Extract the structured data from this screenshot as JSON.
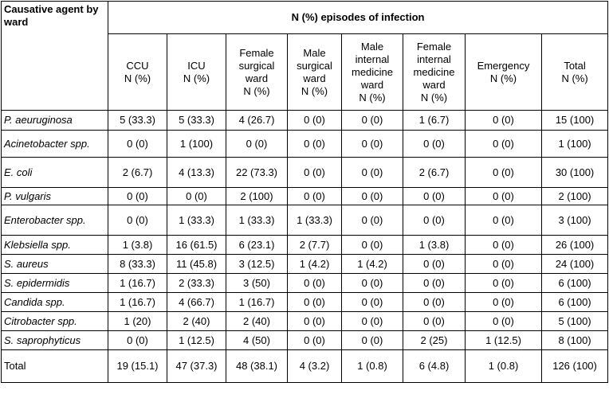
{
  "table": {
    "corner_header": "Causative agent by ward",
    "group_header": "N (%) episodes of infection",
    "columns": [
      "CCU\nN (%)",
      "ICU\nN (%)",
      "Female surgical ward\nN (%)",
      "Male surgical ward\nN (%)",
      "Male internal medicine ward\nN (%)",
      "Female internal medicine ward\nN (%)",
      "Emergency\nN (%)",
      "Total\nN (%)"
    ],
    "rows": [
      {
        "agent": "P. aeuruginosa",
        "italic": true,
        "values": [
          "5 (33.3)",
          "5 (33.3)",
          "4 (26.7)",
          "0 (0)",
          "0 (0)",
          "1 (6.7)",
          "0 (0)",
          "15 (100)"
        ]
      },
      {
        "agent": "Acinetobacter spp.",
        "italic": true,
        "values": [
          "0 (0)",
          "1 (100)",
          "0 (0)",
          "0 (0)",
          "0 (0)",
          "0 (0)",
          "0 (0)",
          "1 (100)"
        ]
      },
      {
        "agent": "E. coli",
        "italic": true,
        "values": [
          "2 (6.7)",
          "4 (13.3)",
          "22 (73.3)",
          "0 (0)",
          "0 (0)",
          "2 (6.7)",
          "0 (0)",
          "30 (100)"
        ]
      },
      {
        "agent": "P. vulgaris",
        "italic": true,
        "values": [
          "0 (0)",
          "0 (0)",
          "2 (100)",
          "0 (0)",
          "0 (0)",
          "0 (0)",
          "0 (0)",
          "2 (100)"
        ]
      },
      {
        "agent": "Enterobacter spp.",
        "italic": true,
        "values": [
          "0 (0)",
          "1 (33.3)",
          "1 (33.3)",
          "1 (33.3)",
          "0 (0)",
          "0 (0)",
          "0 (0)",
          "3 (100)"
        ]
      },
      {
        "agent": "Klebsiella spp.",
        "italic": true,
        "values": [
          "1 (3.8)",
          "16 (61.5)",
          "6 (23.1)",
          "2 (7.7)",
          "0 (0)",
          "1 (3.8)",
          "0 (0)",
          "26 (100)"
        ]
      },
      {
        "agent": "S. aureus",
        "italic": true,
        "values": [
          "8 (33.3)",
          "11 (45.8)",
          "3 (12.5)",
          "1 (4.2)",
          "1 (4.2)",
          "0 (0)",
          "0 (0)",
          "24 (100)"
        ]
      },
      {
        "agent": "S. epidermidis",
        "italic": true,
        "values": [
          "1 (16.7)",
          "2 (33.3)",
          "3 (50)",
          "0 (0)",
          "0 (0)",
          "0 (0)",
          "0 (0)",
          "6 (100)"
        ]
      },
      {
        "agent": "Candida spp.",
        "italic": true,
        "values": [
          "1 (16.7)",
          "4 (66.7)",
          "1 (16.7)",
          "0 (0)",
          "0 (0)",
          "0 (0)",
          "0 (0)",
          "6 (100)"
        ]
      },
      {
        "agent": "Citrobacter spp.",
        "italic": true,
        "values": [
          "1 (20)",
          "2 (40)",
          "2 (40)",
          "0 (0)",
          "0 (0)",
          "0 (0)",
          "0 (0)",
          "5 (100)"
        ]
      },
      {
        "agent": "S. saprophyticus",
        "italic": true,
        "values": [
          "0 (0)",
          "1 (12.5)",
          "4 (50)",
          "0 (0)",
          "0 (0)",
          "2 (25)",
          "1 (12.5)",
          "8 (100)"
        ]
      },
      {
        "agent": "Total",
        "italic": false,
        "values": [
          "19 (15.1)",
          "47 (37.3)",
          "48 (38.1)",
          "4 (3.2)",
          "1 (0.8)",
          "6 (4.8)",
          "1 (0.8)",
          "126 (100)"
        ]
      }
    ]
  }
}
